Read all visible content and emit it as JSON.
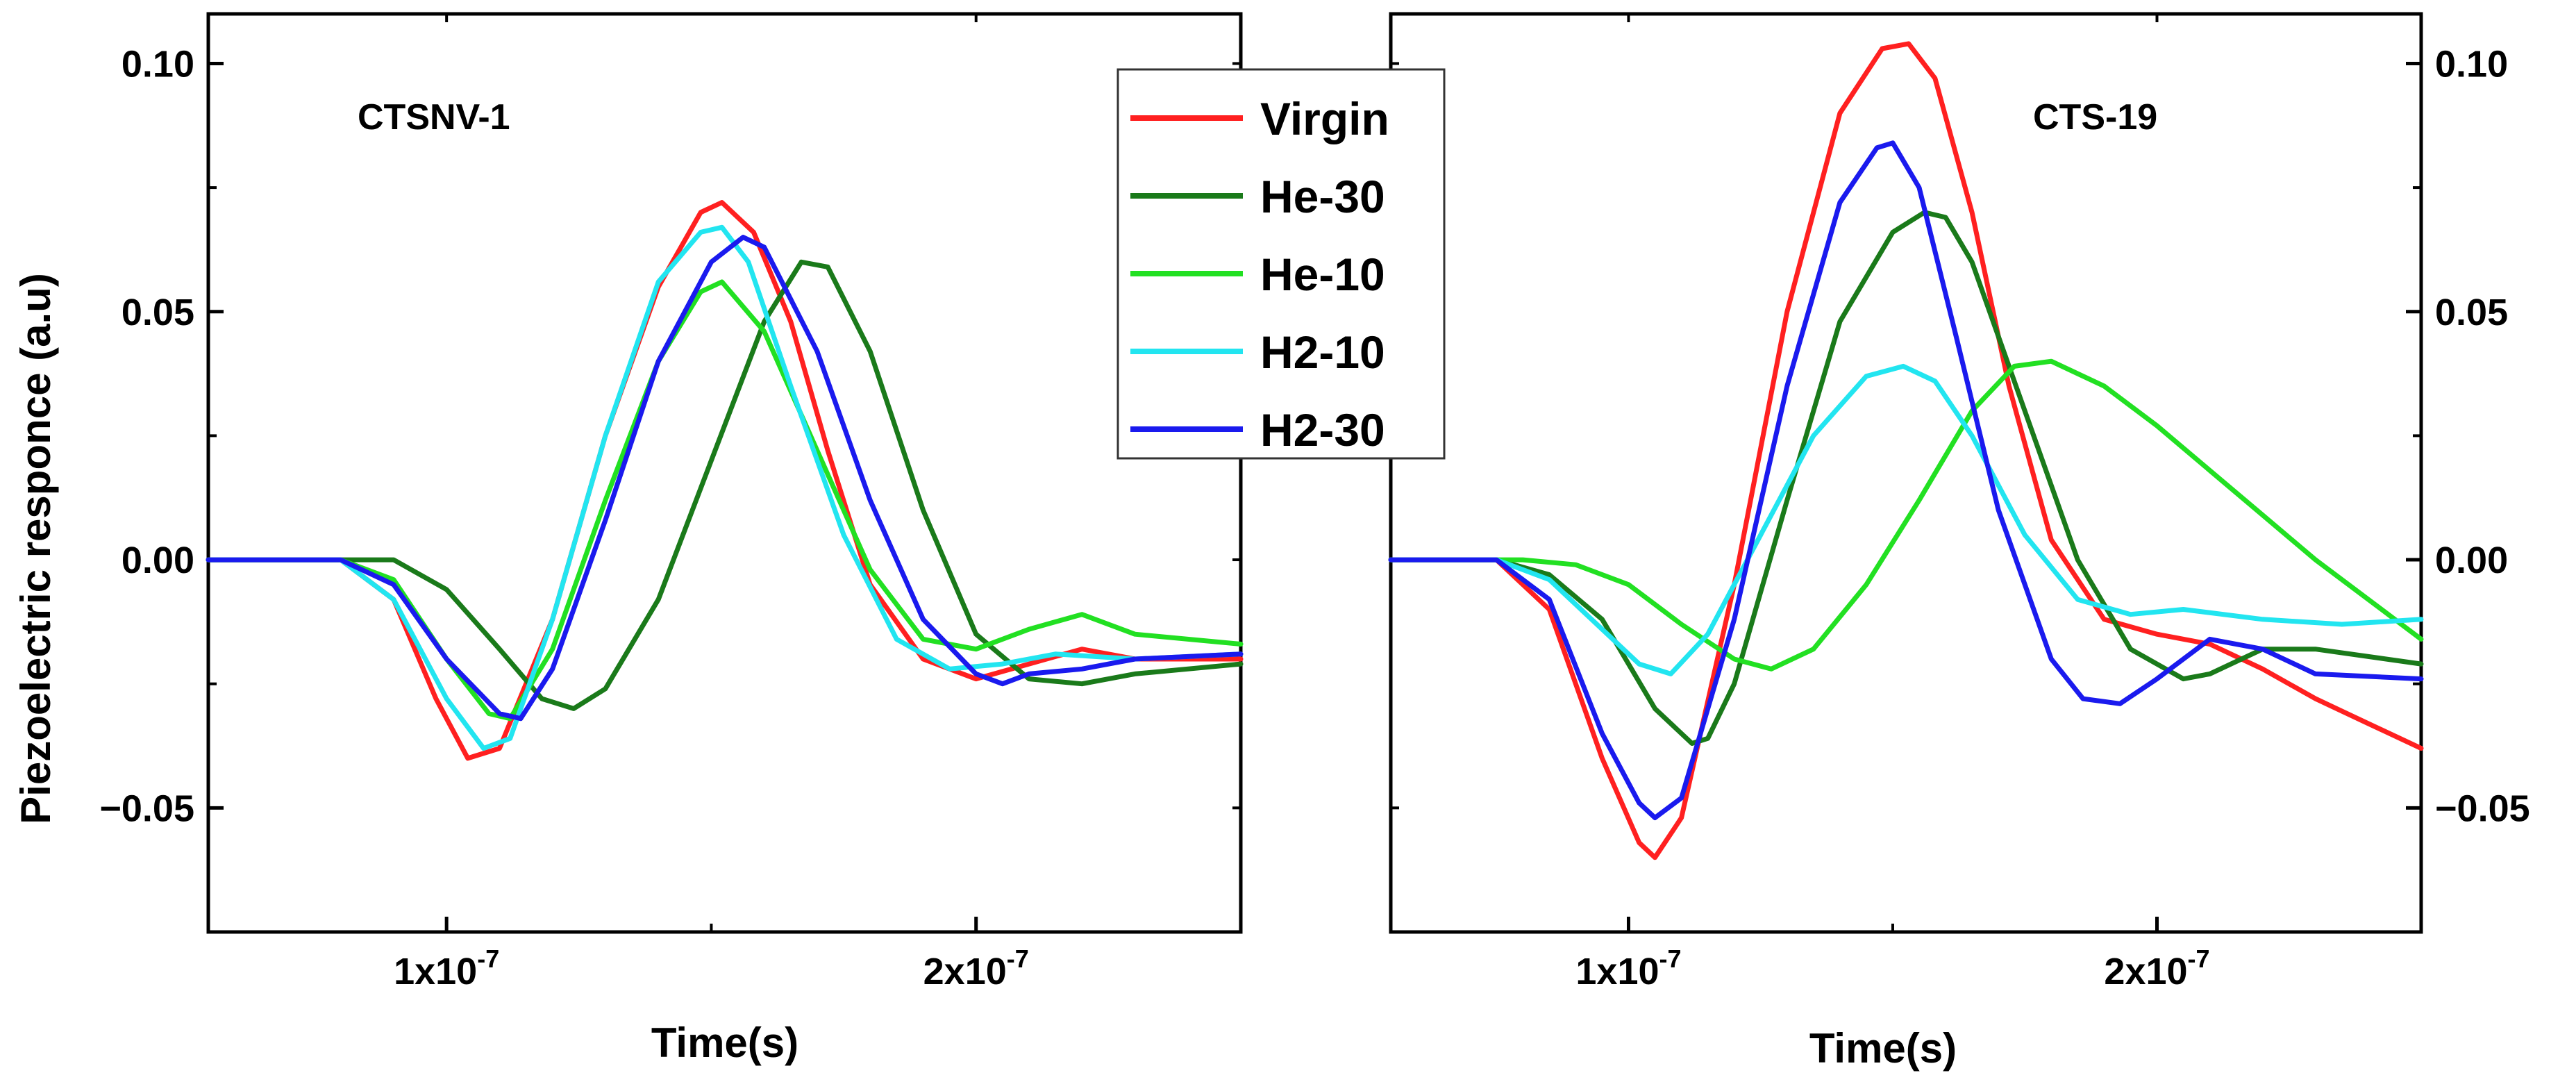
{
  "chart_data": [
    {
      "type": "line",
      "title": "CTSNV-1",
      "xlabel": "Time(s)",
      "ylabel": "Piezoelectric responce (a.u)",
      "xlim": [
        5.5e-08,
        2.5e-07
      ],
      "ylim": [
        -0.075,
        0.11
      ],
      "y_ticks": [
        -0.05,
        0.0,
        0.05,
        0.1
      ],
      "y_tick_labels": [
        "-0.05",
        "0.00",
        "0.05",
        "0.10"
      ],
      "y_axis_side": "left",
      "x_ticks": [
        1e-07,
        2e-07
      ],
      "x_tick_labels": [
        {
          "base": "1x10",
          "exp": "-7"
        },
        {
          "base": "2x10",
          "exp": "-7"
        }
      ],
      "series": [
        {
          "name": "Virgin",
          "color": "#ff2020",
          "x": [
            5.5e-08,
            8e-08,
            9e-08,
            9.8e-08,
            1.04e-07,
            1.1e-07,
            1.2e-07,
            1.3e-07,
            1.4e-07,
            1.48e-07,
            1.52e-07,
            1.58e-07,
            1.65e-07,
            1.72e-07,
            1.8e-07,
            1.9e-07,
            2e-07,
            2.1e-07,
            2.2e-07,
            2.3e-07,
            2.5e-07
          ],
          "y": [
            0,
            0,
            -0.008,
            -0.028,
            -0.04,
            -0.038,
            -0.012,
            0.025,
            0.055,
            0.07,
            0.072,
            0.066,
            0.048,
            0.022,
            -0.005,
            -0.02,
            -0.024,
            -0.021,
            -0.018,
            -0.02,
            -0.02
          ]
        },
        {
          "name": "He-30",
          "color": "#1a7a1a",
          "x": [
            5.5e-08,
            8e-08,
            9e-08,
            1e-07,
            1.1e-07,
            1.18e-07,
            1.24e-07,
            1.3e-07,
            1.4e-07,
            1.5e-07,
            1.6e-07,
            1.67e-07,
            1.72e-07,
            1.8e-07,
            1.9e-07,
            2e-07,
            2.1e-07,
            2.2e-07,
            2.3e-07,
            2.5e-07
          ],
          "y": [
            0,
            0,
            0,
            -0.006,
            -0.018,
            -0.028,
            -0.03,
            -0.026,
            -0.008,
            0.02,
            0.048,
            0.06,
            0.059,
            0.042,
            0.01,
            -0.015,
            -0.024,
            -0.025,
            -0.023,
            -0.021
          ]
        },
        {
          "name": "He-10",
          "color": "#22e022",
          "x": [
            5.5e-08,
            8e-08,
            9e-08,
            1e-07,
            1.08e-07,
            1.12e-07,
            1.2e-07,
            1.3e-07,
            1.4e-07,
            1.48e-07,
            1.52e-07,
            1.6e-07,
            1.7e-07,
            1.8e-07,
            1.9e-07,
            2e-07,
            2.1e-07,
            2.2e-07,
            2.3e-07,
            2.5e-07
          ],
          "y": [
            0,
            0,
            -0.004,
            -0.02,
            -0.031,
            -0.032,
            -0.018,
            0.012,
            0.04,
            0.054,
            0.056,
            0.046,
            0.022,
            -0.002,
            -0.016,
            -0.018,
            -0.014,
            -0.011,
            -0.015,
            -0.017
          ]
        },
        {
          "name": "H2-10",
          "color": "#22e5f0",
          "x": [
            5.5e-08,
            8e-08,
            9e-08,
            1e-07,
            1.07e-07,
            1.12e-07,
            1.2e-07,
            1.3e-07,
            1.4e-07,
            1.48e-07,
            1.52e-07,
            1.57e-07,
            1.65e-07,
            1.75e-07,
            1.85e-07,
            1.95e-07,
            2.05e-07,
            2.15e-07,
            2.3e-07,
            2.5e-07
          ],
          "y": [
            0,
            0,
            -0.008,
            -0.028,
            -0.038,
            -0.036,
            -0.012,
            0.025,
            0.056,
            0.066,
            0.067,
            0.06,
            0.035,
            0.005,
            -0.016,
            -0.022,
            -0.021,
            -0.019,
            -0.02,
            -0.019
          ]
        },
        {
          "name": "H2-30",
          "color": "#1a1aee",
          "x": [
            5.5e-08,
            8e-08,
            9e-08,
            1e-07,
            1.1e-07,
            1.14e-07,
            1.2e-07,
            1.3e-07,
            1.4e-07,
            1.5e-07,
            1.56e-07,
            1.6e-07,
            1.7e-07,
            1.8e-07,
            1.9e-07,
            2e-07,
            2.05e-07,
            2.1e-07,
            2.2e-07,
            2.3e-07,
            2.5e-07
          ],
          "y": [
            0,
            0,
            -0.005,
            -0.02,
            -0.031,
            -0.032,
            -0.022,
            0.008,
            0.04,
            0.06,
            0.065,
            0.063,
            0.042,
            0.012,
            -0.012,
            -0.023,
            -0.025,
            -0.023,
            -0.022,
            -0.02,
            -0.019
          ]
        }
      ]
    },
    {
      "type": "line",
      "title": "CTS-19",
      "xlabel": "Time(s)",
      "ylabel": "",
      "xlim": [
        5.5e-08,
        2.5e-07
      ],
      "ylim": [
        -0.075,
        0.11
      ],
      "y_ticks": [
        -0.05,
        0.0,
        0.05,
        0.1
      ],
      "y_tick_labels": [
        "-0.05",
        "0.00",
        "0.05",
        "0.10"
      ],
      "y_axis_side": "right",
      "x_ticks": [
        1e-07,
        2e-07
      ],
      "x_tick_labels": [
        {
          "base": "1x10",
          "exp": "-7"
        },
        {
          "base": "2x10",
          "exp": "-7"
        }
      ],
      "series": [
        {
          "name": "Virgin",
          "color": "#ff2020",
          "x": [
            5.5e-08,
            7.5e-08,
            8.5e-08,
            9.5e-08,
            1.02e-07,
            1.05e-07,
            1.1e-07,
            1.2e-07,
            1.3e-07,
            1.4e-07,
            1.48e-07,
            1.53e-07,
            1.58e-07,
            1.65e-07,
            1.72e-07,
            1.8e-07,
            1.9e-07,
            2e-07,
            2.1e-07,
            2.2e-07,
            2.3e-07,
            2.4e-07,
            2.5e-07
          ],
          "y": [
            0,
            0,
            -0.01,
            -0.04,
            -0.057,
            -0.06,
            -0.052,
            -0.005,
            0.05,
            0.09,
            0.103,
            0.104,
            0.097,
            0.07,
            0.035,
            0.004,
            -0.012,
            -0.015,
            -0.017,
            -0.022,
            -0.028,
            -0.033,
            -0.038
          ]
        },
        {
          "name": "He-30",
          "color": "#1a7a1a",
          "x": [
            5.5e-08,
            7.5e-08,
            8.5e-08,
            9.5e-08,
            1.05e-07,
            1.12e-07,
            1.15e-07,
            1.2e-07,
            1.3e-07,
            1.4e-07,
            1.5e-07,
            1.56e-07,
            1.6e-07,
            1.65e-07,
            1.75e-07,
            1.85e-07,
            1.95e-07,
            2.05e-07,
            2.1e-07,
            2.2e-07,
            2.3e-07,
            2.5e-07
          ],
          "y": [
            0,
            0,
            -0.003,
            -0.012,
            -0.03,
            -0.037,
            -0.036,
            -0.025,
            0.012,
            0.048,
            0.066,
            0.07,
            0.069,
            0.06,
            0.03,
            0.0,
            -0.018,
            -0.024,
            -0.023,
            -0.018,
            -0.018,
            -0.021
          ]
        },
        {
          "name": "He-10",
          "color": "#22e022",
          "x": [
            5.5e-08,
            8e-08,
            9e-08,
            1e-07,
            1.1e-07,
            1.2e-07,
            1.27e-07,
            1.35e-07,
            1.45e-07,
            1.55e-07,
            1.65e-07,
            1.73e-07,
            1.8e-07,
            1.9e-07,
            2e-07,
            2.1e-07,
            2.2e-07,
            2.3e-07,
            2.4e-07,
            2.5e-07
          ],
          "y": [
            0,
            0,
            -0.001,
            -0.005,
            -0.013,
            -0.02,
            -0.022,
            -0.018,
            -0.005,
            0.012,
            0.03,
            0.039,
            0.04,
            0.035,
            0.027,
            0.018,
            0.009,
            0.0,
            -0.008,
            -0.016
          ]
        },
        {
          "name": "H2-10",
          "color": "#22e5f0",
          "x": [
            5.5e-08,
            7.5e-08,
            8.5e-08,
            9.5e-08,
            1.02e-07,
            1.08e-07,
            1.15e-07,
            1.25e-07,
            1.35e-07,
            1.45e-07,
            1.52e-07,
            1.58e-07,
            1.65e-07,
            1.75e-07,
            1.85e-07,
            1.95e-07,
            2.05e-07,
            2.2e-07,
            2.35e-07,
            2.5e-07
          ],
          "y": [
            0,
            0,
            -0.004,
            -0.014,
            -0.021,
            -0.023,
            -0.015,
            0.005,
            0.025,
            0.037,
            0.039,
            0.036,
            0.025,
            0.005,
            -0.008,
            -0.011,
            -0.01,
            -0.012,
            -0.013,
            -0.012
          ]
        },
        {
          "name": "H2-30",
          "color": "#1a1aee",
          "x": [
            5.5e-08,
            7.5e-08,
            8.5e-08,
            9.5e-08,
            1.02e-07,
            1.05e-07,
            1.1e-07,
            1.2e-07,
            1.3e-07,
            1.4e-07,
            1.47e-07,
            1.5e-07,
            1.55e-07,
            1.62e-07,
            1.7e-07,
            1.8e-07,
            1.86e-07,
            1.93e-07,
            2e-07,
            2.1e-07,
            2.2e-07,
            2.3e-07,
            2.5e-07
          ],
          "y": [
            0,
            0,
            -0.008,
            -0.035,
            -0.049,
            -0.052,
            -0.048,
            -0.012,
            0.035,
            0.072,
            0.083,
            0.084,
            0.075,
            0.045,
            0.01,
            -0.02,
            -0.028,
            -0.029,
            -0.024,
            -0.016,
            -0.018,
            -0.023,
            -0.024
          ]
        }
      ]
    }
  ],
  "legend": {
    "placement": "top-center",
    "entries": [
      {
        "label": "Virgin",
        "color": "#ff2020"
      },
      {
        "label": "He-30",
        "color": "#1a7a1a"
      },
      {
        "label": "He-10",
        "color": "#22e022"
      },
      {
        "label": "H2-10",
        "color": "#22e5f0"
      },
      {
        "label": "H2-30",
        "color": "#1a1aee"
      }
    ]
  }
}
